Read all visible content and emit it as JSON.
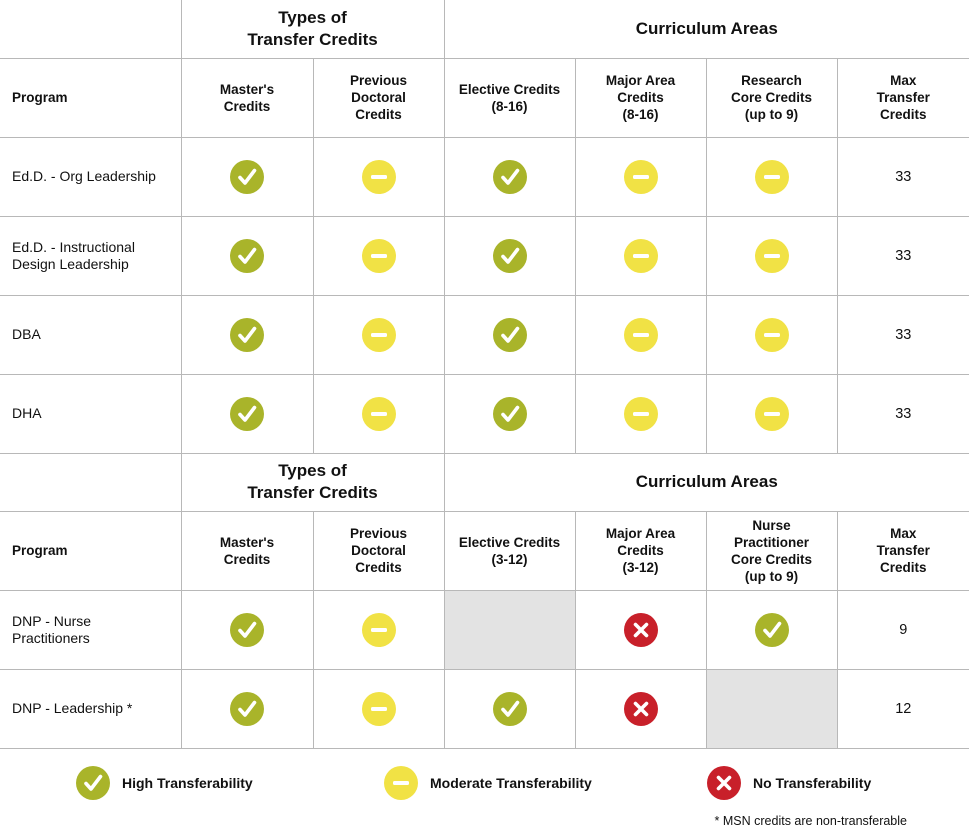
{
  "colors": {
    "high": "#a9b42a",
    "moderate": "#f1e245",
    "none": "#c8202a",
    "na_fill": "#e3e3e3",
    "grid": "#b8b8b8"
  },
  "icons": {
    "high": "check-circle-icon",
    "moderate": "minus-circle-icon",
    "none": "x-circle-icon"
  },
  "table1": {
    "group_types": "Types of\nTransfer Credits",
    "group_curriculum": "Curriculum Areas",
    "headers": [
      "Program",
      "Master's\nCredits",
      "Previous\nDoctoral\nCredits",
      "Elective Credits\n(8-16)",
      "Major Area\nCredits\n(8-16)",
      "Research\nCore Credits\n(up to 9)",
      "Max\nTransfer\nCredits"
    ],
    "rows": [
      {
        "program": "Ed.D. - Org Leadership",
        "cells": [
          "high",
          "moderate",
          "high",
          "moderate",
          "moderate"
        ],
        "max": "33"
      },
      {
        "program": "Ed.D. - Instructional\nDesign Leadership",
        "cells": [
          "high",
          "moderate",
          "high",
          "moderate",
          "moderate"
        ],
        "max": "33"
      },
      {
        "program": "DBA",
        "cells": [
          "high",
          "moderate",
          "high",
          "moderate",
          "moderate"
        ],
        "max": "33"
      },
      {
        "program": "DHA",
        "cells": [
          "high",
          "moderate",
          "high",
          "moderate",
          "moderate"
        ],
        "max": "33"
      }
    ]
  },
  "table2": {
    "group_types": "Types of\nTransfer Credits",
    "group_curriculum": "Curriculum Areas",
    "headers": [
      "Program",
      "Master's\nCredits",
      "Previous\nDoctoral\nCredits",
      "Elective Credits\n(3-12)",
      "Major Area\nCredits\n(3-12)",
      "Nurse\nPractitioner\nCore Credits\n(up to 9)",
      "Max\nTransfer\nCredits"
    ],
    "rows": [
      {
        "program": "DNP - Nurse\nPractitioners",
        "cells": [
          "high",
          "moderate",
          "na",
          "none",
          "high"
        ],
        "max": "9"
      },
      {
        "program": "DNP - Leadership *",
        "cells": [
          "high",
          "moderate",
          "high",
          "none",
          "na"
        ],
        "max": "12"
      }
    ]
  },
  "legend": [
    {
      "level": "high",
      "label": "High Transferability"
    },
    {
      "level": "moderate",
      "label": "Moderate Transferability"
    },
    {
      "level": "none",
      "label": "No Transferability"
    }
  ],
  "footnote": "* MSN credits are non-transferable"
}
